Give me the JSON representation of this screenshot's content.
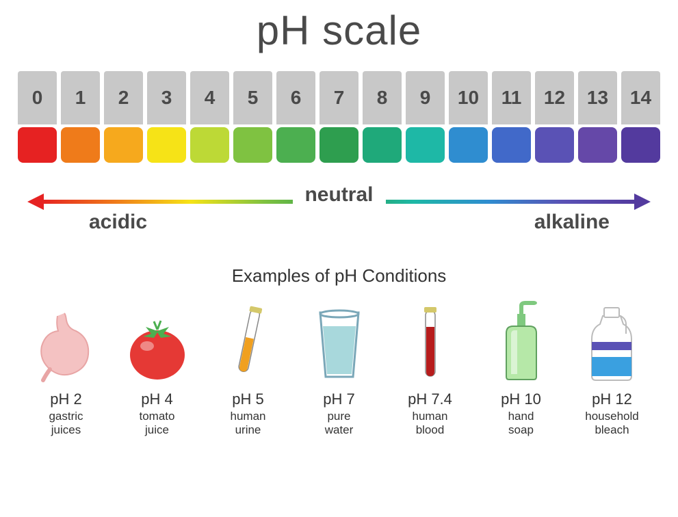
{
  "title": "pH scale",
  "scale": [
    {
      "n": "0",
      "color": "#e62222"
    },
    {
      "n": "1",
      "color": "#ef7b1a"
    },
    {
      "n": "2",
      "color": "#f6a91d"
    },
    {
      "n": "3",
      "color": "#f6e317"
    },
    {
      "n": "4",
      "color": "#bdd936"
    },
    {
      "n": "5",
      "color": "#7fc241"
    },
    {
      "n": "6",
      "color": "#4caf50"
    },
    {
      "n": "7",
      "color": "#2e9e4f"
    },
    {
      "n": "8",
      "color": "#1fa97a"
    },
    {
      "n": "9",
      "color": "#1eb8a6"
    },
    {
      "n": "10",
      "color": "#2f8dd0"
    },
    {
      "n": "11",
      "color": "#4169c9"
    },
    {
      "n": "12",
      "color": "#5a52b5"
    },
    {
      "n": "13",
      "color": "#6548a8"
    },
    {
      "n": "14",
      "color": "#533a9e"
    }
  ],
  "gradient": {
    "left_color": "#e62222",
    "right_color": "#533a9e",
    "stops": [
      "#e62222",
      "#ef7b1a",
      "#f6e317",
      "#7fc241",
      "#2e9e4f",
      "#1eb8a6",
      "#2f8dd0",
      "#5a52b5",
      "#533a9e"
    ]
  },
  "labels": {
    "acidic": "acidic",
    "neutral": "neutral",
    "alkaline": "alkaline"
  },
  "examples_title": "Examples of pH Conditions",
  "examples": [
    {
      "ph": "pH 2",
      "name": "gastric\njuices",
      "icon": "stomach"
    },
    {
      "ph": "pH 4",
      "name": "tomato\njuice",
      "icon": "tomato"
    },
    {
      "ph": "pH 5",
      "name": "human\nurine",
      "icon": "tube-yellow"
    },
    {
      "ph": "pH 7",
      "name": "pure\nwater",
      "icon": "water-glass"
    },
    {
      "ph": "pH 7.4",
      "name": "human\nblood",
      "icon": "tube-red"
    },
    {
      "ph": "pH 10",
      "name": "hand\nsoap",
      "icon": "soap"
    },
    {
      "ph": "pH 12",
      "name": "household\nbleach",
      "icon": "bleach"
    }
  ],
  "icon_colors": {
    "stomach_fill": "#f4c2c2",
    "stomach_stroke": "#e8a5a5",
    "tomato_fill": "#e53935",
    "tomato_leaf": "#4caf50",
    "tube_stroke": "#888",
    "urine_fill": "#f0a020",
    "blood_fill": "#b71c1c",
    "glass_stroke": "#7aa7b8",
    "water_fill": "#a8d8dc",
    "soap_body": "#b6e8a8",
    "soap_pump": "#7fc97f",
    "soap_stroke": "#5fa05f",
    "bleach_body": "#ffffff",
    "bleach_stroke": "#bbb",
    "bleach_stripe1": "#5a52b5",
    "bleach_stripe2": "#3aa0e0",
    "tube_cap": "#d4c86a"
  }
}
